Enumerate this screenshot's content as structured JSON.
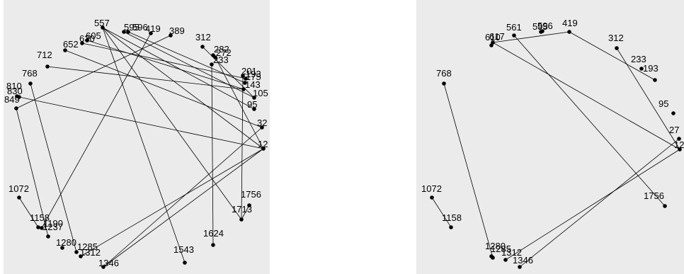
{
  "graphs": [
    {
      "id": "left",
      "nodes": [
        {
          "id": "557",
          "label": "557"
        },
        {
          "id": "595",
          "label": "595"
        },
        {
          "id": "596",
          "label": "596"
        },
        {
          "id": "419",
          "label": "419"
        },
        {
          "id": "389",
          "label": "389"
        },
        {
          "id": "605",
          "label": "605"
        },
        {
          "id": "630",
          "label": "630"
        },
        {
          "id": "652",
          "label": "652"
        },
        {
          "id": "312",
          "label": "312"
        },
        {
          "id": "282",
          "label": "282"
        },
        {
          "id": "272",
          "label": "272"
        },
        {
          "id": "233",
          "label": "233"
        },
        {
          "id": "712",
          "label": "712"
        },
        {
          "id": "201",
          "label": "201"
        },
        {
          "id": "193",
          "label": "193"
        },
        {
          "id": "175",
          "label": "175"
        },
        {
          "id": "768",
          "label": "768"
        },
        {
          "id": "143",
          "label": "143"
        },
        {
          "id": "810",
          "label": "810"
        },
        {
          "id": "830",
          "label": "830"
        },
        {
          "id": "849",
          "label": "849"
        },
        {
          "id": "105",
          "label": "105"
        },
        {
          "id": "95",
          "label": "95"
        },
        {
          "id": "32",
          "label": "32"
        },
        {
          "id": "12",
          "label": "12"
        },
        {
          "id": "1072",
          "label": "1072"
        },
        {
          "id": "1158",
          "label": "1158"
        },
        {
          "id": "1190",
          "label": "1190"
        },
        {
          "id": "1237",
          "label": "1237"
        },
        {
          "id": "1280",
          "label": "1280"
        },
        {
          "id": "1285",
          "label": "1285"
        },
        {
          "id": "1312",
          "label": "1312"
        },
        {
          "id": "1346",
          "label": "1346"
        },
        {
          "id": "1543",
          "label": "1543"
        },
        {
          "id": "1624",
          "label": "1624"
        },
        {
          "id": "1713",
          "label": "1713"
        },
        {
          "id": "1756",
          "label": "1756"
        }
      ],
      "edges": [
        [
          "557",
          "12"
        ],
        [
          "557",
          "95"
        ],
        [
          "557",
          "1543"
        ],
        [
          "557",
          "1713"
        ],
        [
          "595",
          "105"
        ],
        [
          "596",
          "175"
        ],
        [
          "419",
          "1190"
        ],
        [
          "389",
          "849"
        ],
        [
          "605",
          "143"
        ],
        [
          "630",
          "193"
        ],
        [
          "652",
          "32"
        ],
        [
          "312",
          "105"
        ],
        [
          "272",
          "12"
        ],
        [
          "233",
          "1624"
        ],
        [
          "712",
          "143"
        ],
        [
          "768",
          "1285"
        ],
        [
          "830",
          "12"
        ],
        [
          "849",
          "1237"
        ],
        [
          "1312",
          "12"
        ],
        [
          "1346",
          "12"
        ],
        [
          "1346",
          "32"
        ],
        [
          "201",
          "1713"
        ],
        [
          "1072",
          "1158"
        ],
        [
          "1756",
          "1713"
        ]
      ]
    },
    {
      "id": "right",
      "nodes": [
        {
          "id": "610",
          "label": "610"
        },
        {
          "id": "617",
          "label": "617"
        },
        {
          "id": "561",
          "label": "561"
        },
        {
          "id": "595",
          "label": "595"
        },
        {
          "id": "596",
          "label": "596"
        },
        {
          "id": "419",
          "label": "419"
        },
        {
          "id": "312",
          "label": "312"
        },
        {
          "id": "233",
          "label": "233"
        },
        {
          "id": "193",
          "label": "193"
        },
        {
          "id": "768",
          "label": "768"
        },
        {
          "id": "95",
          "label": "95"
        },
        {
          "id": "27",
          "label": "27"
        },
        {
          "id": "12",
          "label": "12"
        },
        {
          "id": "1072",
          "label": "1072"
        },
        {
          "id": "1158",
          "label": "1158"
        },
        {
          "id": "1280",
          "label": "1280"
        },
        {
          "id": "1285",
          "label": "1285"
        },
        {
          "id": "1312",
          "label": "1312"
        },
        {
          "id": "1346",
          "label": "1346"
        },
        {
          "id": "1756",
          "label": "1756"
        }
      ],
      "edges": [
        [
          "419",
          "193"
        ],
        [
          "419",
          "617"
        ],
        [
          "617",
          "12"
        ],
        [
          "561",
          "1756"
        ],
        [
          "312",
          "12"
        ],
        [
          "1312",
          "12"
        ],
        [
          "1346",
          "27"
        ],
        [
          "768",
          "1285"
        ],
        [
          "1072",
          "1158"
        ]
      ]
    }
  ]
}
